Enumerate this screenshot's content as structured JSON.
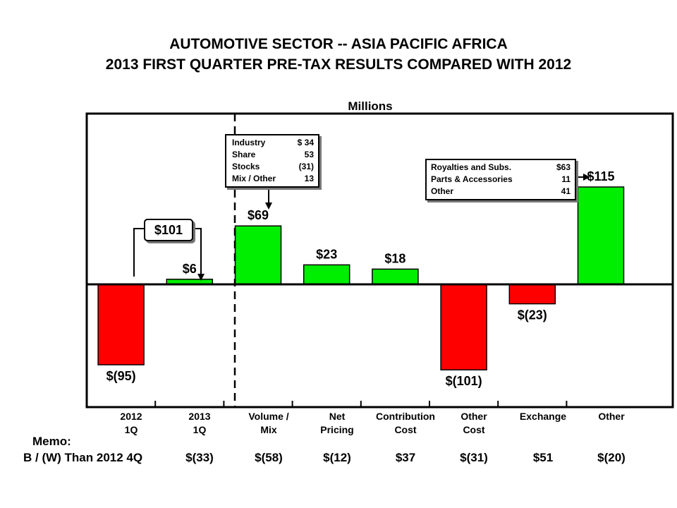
{
  "title_line1": "AUTOMOTIVE SECTOR -- ASIA PACIFIC AFRICA",
  "title_line2": "2013 FIRST QUARTER PRE-TAX RESULTS COMPARED WITH 2012",
  "units": "Millions",
  "colors": {
    "positive": "#00ee00",
    "negative": "#ff0000",
    "frame": "#000000"
  },
  "chart_data": {
    "type": "bar",
    "title": "AUTOMOTIVE SECTOR -- ASIA PACIFIC AFRICA / 2013 FIRST QUARTER PRE-TAX RESULTS COMPARED WITH 2012",
    "ylabel": "Millions",
    "ylim": [
      -135,
      205
    ],
    "categories": [
      [
        "2012",
        "1Q"
      ],
      [
        "2013",
        "1Q"
      ],
      [
        "Volume /",
        "Mix"
      ],
      [
        "Net",
        "Pricing"
      ],
      [
        "Contribution",
        "Cost"
      ],
      [
        "Other",
        "Cost"
      ],
      [
        "Exchange",
        ""
      ],
      [
        "Other",
        ""
      ]
    ],
    "values": [
      -95,
      6,
      69,
      23,
      18,
      -101,
      -23,
      115
    ],
    "value_labels": [
      "$(95)",
      "$6",
      "$69",
      "$23",
      "$18",
      "$(101)",
      "$(23)",
      "$115"
    ],
    "grid": false,
    "legend": "none"
  },
  "change_callout": "$101",
  "volume_mix_breakdown": [
    {
      "label": "Industry",
      "value": "$ 34"
    },
    {
      "label": "Share",
      "value": "53"
    },
    {
      "label": "Stocks",
      "value": "(31)"
    },
    {
      "label": "Mix / Other",
      "value": "13"
    }
  ],
  "other_breakdown": [
    {
      "label": "Royalties and Subs.",
      "value": "$63"
    },
    {
      "label": "Parts & Accessories",
      "value": "11"
    },
    {
      "label": "Other",
      "value": "41"
    }
  ],
  "memo": {
    "label": "Memo:",
    "row_label": "B / (W) Than 2012 4Q",
    "values": [
      "$(33)",
      "$(58)",
      "$(12)",
      "$37",
      "$(31)",
      "$51",
      "$(20)"
    ]
  }
}
